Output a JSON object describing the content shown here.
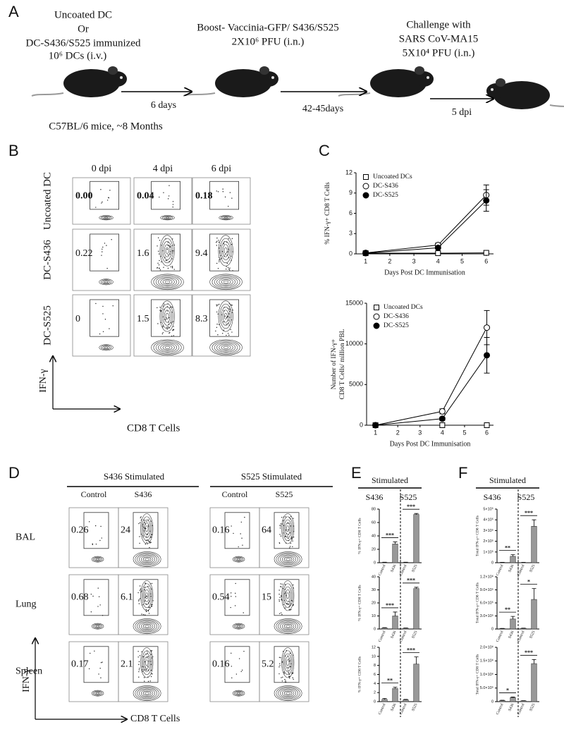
{
  "panel_labels": [
    "A",
    "B",
    "C",
    "D",
    "E",
    "F"
  ],
  "schematic": {
    "group_lines": [
      "Uncoated DC",
      "Or",
      "DC-S436/S525 immunized"
    ],
    "dose": "10⁶ DCs (i.v.)",
    "mice": "C57BL/6 mice, ~8 Months",
    "interval_1": "6 days",
    "boost_lines": [
      "Boost- Vaccinia-GFP/ S436/S525",
      "2X10⁶ PFU  (i.n.)"
    ],
    "interval_2": "42-45days",
    "challenge_lines": [
      "Challenge with",
      "SARS CoV-MA15",
      "5X10⁴  PFU (i.n.)"
    ],
    "interval_3": "5 dpi"
  },
  "flow_b": {
    "columns": [
      "0 dpi",
      "4 dpi",
      "6 dpi"
    ],
    "rows": [
      "Uncoated DC",
      "DC-S436",
      "DC-S525"
    ],
    "values": [
      [
        "0.00",
        "0.04",
        "0.18"
      ],
      [
        "0.22",
        "1.6",
        "9.4"
      ],
      [
        "0",
        "1.5",
        "8.3"
      ]
    ],
    "y_label": "IFN-γ",
    "x_label": "CD8 T Cells"
  },
  "flow_d": {
    "groups": [
      {
        "title": "S436 Stimulated",
        "columns": [
          "Control",
          "S436"
        ]
      },
      {
        "title": "S525 Stimulated",
        "columns": [
          "Control",
          "S525"
        ]
      }
    ],
    "rows": [
      "BAL",
      "Lung",
      "Spleen"
    ],
    "values": [
      [
        "0.26",
        "24",
        "0.16",
        "64"
      ],
      [
        "0.68",
        "6.1",
        "0.54",
        "15"
      ],
      [
        "0.17",
        "2.1",
        "0.16",
        "5.2"
      ]
    ],
    "y_label": "IFN-γ",
    "x_label": "CD8 T Cells"
  },
  "panel_e": {
    "header": "Stimulated",
    "groups": [
      "S436",
      "S525"
    ]
  },
  "panel_f": {
    "header": "Stimulated",
    "groups": [
      "S436",
      "S525"
    ]
  },
  "chart_data": [
    {
      "type": "line",
      "y_label": [
        "% IFN-γ+ CD8 T Cells"
      ],
      "x_label": "Days Post DC Immunisation",
      "x": [
        1,
        4,
        6
      ],
      "xlim": [
        0.6,
        6.3
      ],
      "xticks": [
        1,
        2,
        3,
        4,
        5,
        6
      ],
      "ylim": [
        0,
        12
      ],
      "yticks": [
        0,
        3,
        6,
        9,
        12
      ],
      "legend": "upper left",
      "series": [
        {
          "name": "Uncoated DCs",
          "marker": "open-square",
          "color": "#000000",
          "values": [
            0.1,
            0.1,
            0.15
          ],
          "errors": [
            0.05,
            0.05,
            0.1
          ]
        },
        {
          "name": "DC-S436",
          "marker": "open-circle",
          "color": "#000000",
          "values": [
            0.15,
            1.3,
            8.7
          ],
          "errors": [
            0.05,
            0.3,
            1.5
          ]
        },
        {
          "name": "DC-S525",
          "marker": "filled-circle",
          "color": "#000000",
          "values": [
            0.1,
            0.9,
            7.9
          ],
          "errors": [
            0.05,
            0.2,
            1.6
          ]
        }
      ]
    },
    {
      "type": "line",
      "y_label": [
        "Number of IFN-γ+",
        "CD8 T Cells/ million PBL"
      ],
      "x_label": "Days Post DC Immunisation",
      "x": [
        1,
        4,
        6
      ],
      "xlim": [
        0.6,
        6.3
      ],
      "xticks": [
        1,
        2,
        3,
        4,
        5,
        6
      ],
      "ylim": [
        0,
        15000
      ],
      "yticks": [
        0,
        5000,
        10000,
        15000
      ],
      "legend": "upper left",
      "series": [
        {
          "name": "Uncoated DCs",
          "marker": "open-square",
          "color": "#000000",
          "values": [
            0,
            0,
            0
          ],
          "errors": [
            0,
            0,
            0
          ]
        },
        {
          "name": "DC-S436",
          "marker": "open-circle",
          "color": "#000000",
          "values": [
            0,
            1700,
            12000
          ],
          "errors": [
            0,
            300,
            2100
          ]
        },
        {
          "name": "DC-S525",
          "marker": "filled-circle",
          "color": "#000000",
          "values": [
            0,
            800,
            8600
          ],
          "errors": [
            0,
            200,
            2200
          ]
        }
      ]
    },
    {
      "type": "bar",
      "y_label": "% IFN-γ+ CD8 T Cells",
      "categories": [
        "Control",
        "S436",
        "Control",
        "S525"
      ],
      "values": [
        0.5,
        28,
        0.5,
        72
      ],
      "errors": [
        0.2,
        3,
        0.2,
        1.5
      ],
      "color": "#999999",
      "ylim": [
        0,
        80
      ],
      "yticks": [
        0,
        20,
        40,
        60,
        80
      ],
      "significance": [
        "***",
        "***"
      ]
    },
    {
      "type": "bar",
      "y_label": "% IFN-γ+ CD8 T Cells",
      "categories": [
        "Control",
        "S436",
        "Control",
        "S525"
      ],
      "values": [
        0.8,
        10,
        0.6,
        31
      ],
      "errors": [
        0.3,
        3,
        0.2,
        1
      ],
      "color": "#999999",
      "ylim": [
        0,
        40
      ],
      "yticks": [
        0,
        10,
        20,
        30,
        40
      ],
      "significance": [
        "***",
        "***"
      ]
    },
    {
      "type": "bar",
      "y_label": "% IFN-γ+ CD8 T Cells",
      "categories": [
        "Control",
        "S436",
        "Control",
        "S525"
      ],
      "values": [
        0.5,
        2.9,
        0.4,
        8.3
      ],
      "errors": [
        0.2,
        0.3,
        0.1,
        1.6
      ],
      "color": "#999999",
      "ylim": [
        0,
        12
      ],
      "yticks": [
        0,
        2,
        4,
        6,
        8,
        10,
        12
      ],
      "significance": [
        "**",
        "***"
      ]
    },
    {
      "type": "bar",
      "y_label": "Total IFN-γ+ CD8 T Cells",
      "categories": [
        "Control",
        "S436",
        "Control",
        "S525"
      ],
      "values": [
        3000,
        60000,
        2000,
        340000
      ],
      "errors": [
        1000,
        15000,
        1000,
        60000
      ],
      "color": "#999999",
      "ylim": [
        0,
        500000
      ],
      "yticks": [
        0,
        {
          "value": 100000,
          "label": "1×10⁵"
        },
        {
          "value": 200000,
          "label": "2×10⁵"
        },
        {
          "value": 300000,
          "label": "3×10⁵"
        },
        {
          "value": 400000,
          "label": "4×10⁵"
        },
        {
          "value": 500000,
          "label": "5×10⁵"
        }
      ],
      "significance": [
        "**",
        "***"
      ]
    },
    {
      "type": "bar",
      "y_label": "Total IFN-γ+ CD8 T Cells",
      "categories": [
        "Control",
        "S436",
        "Control",
        "S525"
      ],
      "values": [
        10000,
        230000,
        15000,
        680000
      ],
      "errors": [
        3000,
        60000,
        5000,
        250000
      ],
      "color": "#999999",
      "ylim": [
        0,
        1200000
      ],
      "yticks": [
        0,
        {
          "value": 300000,
          "label": "3.0×10⁵"
        },
        {
          "value": 600000,
          "label": "6.0×10⁵"
        },
        {
          "value": 900000,
          "label": "9.0×10⁵"
        },
        {
          "value": 1200000,
          "label": "1.2×10⁶"
        }
      ],
      "significance": [
        "**",
        "*"
      ]
    },
    {
      "type": "bar",
      "y_label": "Total IFN-γ+ CD8 T Cells",
      "categories": [
        "Control",
        "S436",
        "Control",
        "S525"
      ],
      "values": [
        40000,
        150000,
        30000,
        1400000
      ],
      "errors": [
        10000,
        20000,
        5000,
        150000
      ],
      "color": "#999999",
      "ylim": [
        0,
        2000000
      ],
      "yticks": [
        0,
        {
          "value": 500000,
          "label": "5.0×10⁵"
        },
        {
          "value": 1000000,
          "label": "1.0×10⁶"
        },
        {
          "value": 1500000,
          "label": "1.5×10⁶"
        },
        {
          "value": 2000000,
          "label": "2.0×10⁶"
        }
      ],
      "significance": [
        "*",
        "***"
      ]
    }
  ]
}
